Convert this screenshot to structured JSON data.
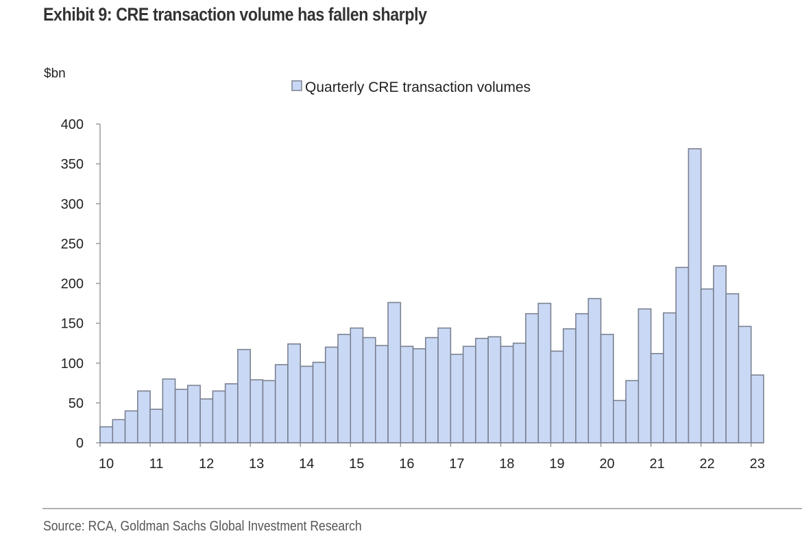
{
  "title": "Exhibit 9: CRE transaction volume has fallen sharply",
  "source": "Source: RCA, Goldman Sachs Global Investment Research",
  "colors": {
    "bar_fill": "#c9d9f5",
    "bar_stroke": "#7a8090",
    "axis": "#9a9a9a"
  },
  "chart_data": {
    "type": "bar",
    "title": "Exhibit 9: CRE transaction volume has fallen sharply",
    "ylabel": "$bn",
    "xlabel": "",
    "ylim": [
      0,
      400
    ],
    "yticks": [
      0,
      50,
      100,
      150,
      200,
      250,
      300,
      350,
      400
    ],
    "xtick_labels": [
      "10",
      "11",
      "12",
      "13",
      "14",
      "15",
      "16",
      "17",
      "18",
      "19",
      "20",
      "21",
      "22",
      "23"
    ],
    "legend": {
      "entries": [
        "Quarterly CRE transaction volumes"
      ],
      "position": "top-center"
    },
    "grid": false,
    "categories": [
      "2010Q1",
      "2010Q2",
      "2010Q3",
      "2010Q4",
      "2011Q1",
      "2011Q2",
      "2011Q3",
      "2011Q4",
      "2012Q1",
      "2012Q2",
      "2012Q3",
      "2012Q4",
      "2013Q1",
      "2013Q2",
      "2013Q3",
      "2013Q4",
      "2014Q1",
      "2014Q2",
      "2014Q3",
      "2014Q4",
      "2015Q1",
      "2015Q2",
      "2015Q3",
      "2015Q4",
      "2016Q1",
      "2016Q2",
      "2016Q3",
      "2016Q4",
      "2017Q1",
      "2017Q2",
      "2017Q3",
      "2017Q4",
      "2018Q1",
      "2018Q2",
      "2018Q3",
      "2018Q4",
      "2019Q1",
      "2019Q2",
      "2019Q3",
      "2019Q4",
      "2020Q1",
      "2020Q2",
      "2020Q3",
      "2020Q4",
      "2021Q1",
      "2021Q2",
      "2021Q3",
      "2021Q4",
      "2022Q1",
      "2022Q2",
      "2022Q3",
      "2022Q4",
      "2023Q1"
    ],
    "series": [
      {
        "name": "Quarterly CRE transaction volumes",
        "values": [
          20,
          29,
          40,
          65,
          42,
          80,
          67,
          72,
          55,
          65,
          74,
          117,
          79,
          78,
          98,
          124,
          96,
          101,
          120,
          136,
          144,
          132,
          122,
          176,
          121,
          118,
          132,
          144,
          111,
          121,
          131,
          133,
          121,
          125,
          162,
          175,
          115,
          143,
          162,
          181,
          136,
          53,
          78,
          168,
          112,
          163,
          220,
          369,
          193,
          222,
          187,
          146,
          85
        ]
      }
    ]
  }
}
